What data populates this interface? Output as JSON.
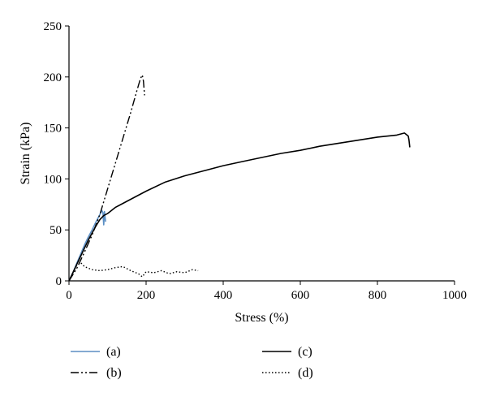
{
  "chart_data": {
    "type": "line",
    "title": "",
    "xlabel": "Stress (%)",
    "ylabel": "Strain (kPa)",
    "xlim": [
      0,
      1000
    ],
    "ylim": [
      0,
      250
    ],
    "xticks": [
      0,
      200,
      400,
      600,
      800,
      1000
    ],
    "yticks": [
      0,
      50,
      100,
      150,
      200,
      250
    ],
    "grid": false,
    "legend_position": "bottom",
    "series": [
      {
        "name": "(a)",
        "color": "#5b8ec4",
        "style": "solid",
        "x": [
          0,
          5,
          10,
          20,
          30,
          40,
          50,
          60,
          70,
          80,
          85,
          88,
          90,
          92,
          95
        ],
        "y": [
          0,
          4,
          8,
          17,
          26,
          35,
          43,
          50,
          58,
          65,
          69,
          67,
          55,
          68,
          58
        ]
      },
      {
        "name": "(b)",
        "color": "#000000",
        "style": "dashdotdot",
        "x": [
          0,
          20,
          40,
          60,
          80,
          100,
          120,
          140,
          160,
          175,
          185,
          190,
          193,
          196
        ],
        "y": [
          0,
          12,
          28,
          45,
          65,
          90,
          115,
          140,
          165,
          185,
          198,
          202,
          196,
          182
        ]
      },
      {
        "name": "(c)",
        "color": "#000000",
        "style": "solid",
        "x": [
          0,
          10,
          20,
          30,
          40,
          50,
          60,
          70,
          80,
          90,
          100,
          120,
          150,
          200,
          250,
          300,
          350,
          400,
          450,
          500,
          550,
          600,
          650,
          700,
          750,
          800,
          850,
          870,
          880,
          882,
          884
        ],
        "y": [
          0,
          8,
          16,
          24,
          32,
          40,
          47,
          54,
          60,
          64,
          66,
          72,
          78,
          88,
          97,
          103,
          108,
          113,
          117,
          121,
          125,
          128,
          132,
          135,
          138,
          141,
          143,
          145,
          142,
          138,
          131
        ]
      },
      {
        "name": "(d)",
        "color": "#000000",
        "style": "dotted",
        "x": [
          0,
          10,
          20,
          30,
          40,
          60,
          80,
          100,
          120,
          140,
          160,
          180,
          190,
          200,
          220,
          240,
          260,
          280,
          300,
          320,
          335
        ],
        "y": [
          0,
          8,
          15,
          18,
          14,
          11,
          10,
          11,
          13,
          14,
          10,
          7,
          4,
          9,
          8,
          10,
          7,
          9,
          8,
          11,
          10
        ]
      }
    ]
  }
}
